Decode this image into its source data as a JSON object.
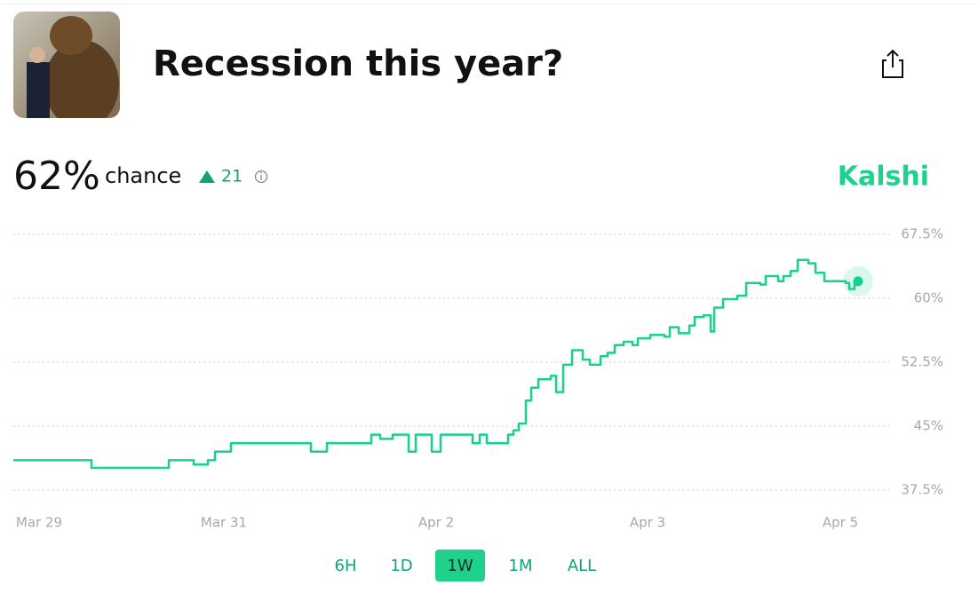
{
  "header": {
    "title": "Recession this year?"
  },
  "summary": {
    "probability": "62%",
    "label": "chance",
    "change": "21",
    "source": "Kalshi"
  },
  "chart_data": {
    "type": "line",
    "step_vertices": true,
    "x": [
      0,
      88,
      88,
      175,
      175,
      203,
      203,
      219,
      219,
      227,
      227,
      245,
      245,
      335,
      335,
      353,
      353,
      403,
      403,
      413,
      413,
      427,
      427,
      445,
      445,
      453,
      453,
      471,
      471,
      481,
      481,
      517,
      517,
      525,
      525,
      533,
      533,
      557,
      557,
      563,
      563,
      569,
      569,
      577,
      577,
      583,
      583,
      591,
      591,
      605,
      605,
      611,
      611,
      619,
      619,
      629,
      629,
      641,
      641,
      649,
      649,
      661,
      661,
      669,
      669,
      677,
      677,
      687,
      687,
      697,
      697,
      703,
      703,
      717,
      717,
      733,
      733,
      739,
      739,
      749,
      749,
      761,
      761,
      767,
      767,
      777,
      777,
      785,
      785,
      789,
      789,
      799,
      799,
      815,
      815,
      825,
      825,
      841,
      841,
      847,
      847,
      861,
      861,
      867,
      867,
      875,
      875,
      883,
      883,
      895,
      895,
      903,
      903,
      913,
      913,
      937,
      937,
      941,
      941,
      947,
      947,
      951
    ],
    "series": [
      {
        "color": "#17d28c",
        "values": [
          41,
          41,
          40.1,
          40.1,
          41,
          41,
          40.5,
          40.5,
          41,
          41,
          42,
          42,
          43,
          43,
          42,
          42,
          43,
          43,
          44,
          44,
          43.5,
          43.5,
          44,
          44,
          42,
          42,
          44,
          44,
          42,
          42,
          44,
          44,
          43,
          43,
          44,
          44,
          43,
          43,
          44,
          44,
          44.5,
          44.5,
          45.3,
          45.3,
          48,
          48,
          49.5,
          49.5,
          50.5,
          50.5,
          50.9,
          50.9,
          49,
          49,
          52.2,
          52.2,
          53.9,
          53.9,
          52.8,
          52.8,
          52.2,
          52.2,
          53.2,
          53.2,
          53.6,
          53.6,
          54.5,
          54.5,
          54.9,
          54.9,
          54.5,
          54.5,
          55.3,
          55.3,
          55.7,
          55.7,
          55.5,
          55.5,
          56.6,
          56.6,
          55.9,
          55.9,
          56.8,
          56.8,
          57.8,
          57.8,
          58,
          58,
          56.1,
          56.1,
          58.9,
          58.9,
          59.9,
          59.9,
          60.3,
          60.3,
          61.8,
          61.8,
          61.6,
          61.6,
          62.6,
          62.6,
          62,
          62,
          62.6,
          62.6,
          63.2,
          63.2,
          64.5,
          64.5,
          64.1,
          64.1,
          63,
          63,
          62,
          62,
          61.8,
          61.8,
          61.1,
          61.1,
          62,
          62
        ]
      }
    ],
    "xlim": [
      0,
      990
    ],
    "ylim": [
      36,
      69
    ],
    "xticks": [
      {
        "value": 29,
        "label": "Mar 29"
      },
      {
        "value": 237,
        "label": "Mar 31"
      },
      {
        "value": 476,
        "label": "Apr 2"
      },
      {
        "value": 714,
        "label": "Apr 3"
      },
      {
        "value": 931,
        "label": "Apr 5"
      }
    ],
    "yticks": [
      {
        "value": 37.5,
        "label": "37.5%"
      },
      {
        "value": 45,
        "label": "45%"
      },
      {
        "value": 52.5,
        "label": "52.5%"
      },
      {
        "value": 60,
        "label": "60%"
      },
      {
        "value": 67.5,
        "label": "67.5%"
      }
    ],
    "grid": true
  },
  "range_buttons": {
    "options": [
      "6H",
      "1D",
      "1W",
      "1M",
      "ALL"
    ],
    "selected": "1W"
  }
}
